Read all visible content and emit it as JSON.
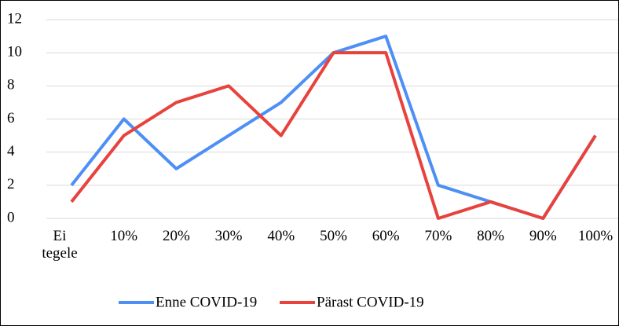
{
  "chart_data": {
    "type": "line",
    "categories": [
      "Ei tegele",
      "10%",
      "20%",
      "30%",
      "40%",
      "50%",
      "60%",
      "70%",
      "80%",
      "90%",
      "100%"
    ],
    "series": [
      {
        "name": "Enne COVID-19",
        "color": "#4e8ff5",
        "values": [
          2,
          6,
          3,
          5,
          7,
          10,
          11,
          2,
          1,
          0,
          5
        ]
      },
      {
        "name": "Pärast COVID-19",
        "color": "#e8423d",
        "values": [
          1,
          5,
          7,
          8,
          5,
          10,
          10,
          0,
          1,
          0,
          5
        ]
      }
    ],
    "ylim": [
      0,
      12
    ],
    "yticks": [
      0,
      2,
      4,
      6,
      8,
      10,
      12
    ],
    "grid": true,
    "legend": "bottom"
  }
}
